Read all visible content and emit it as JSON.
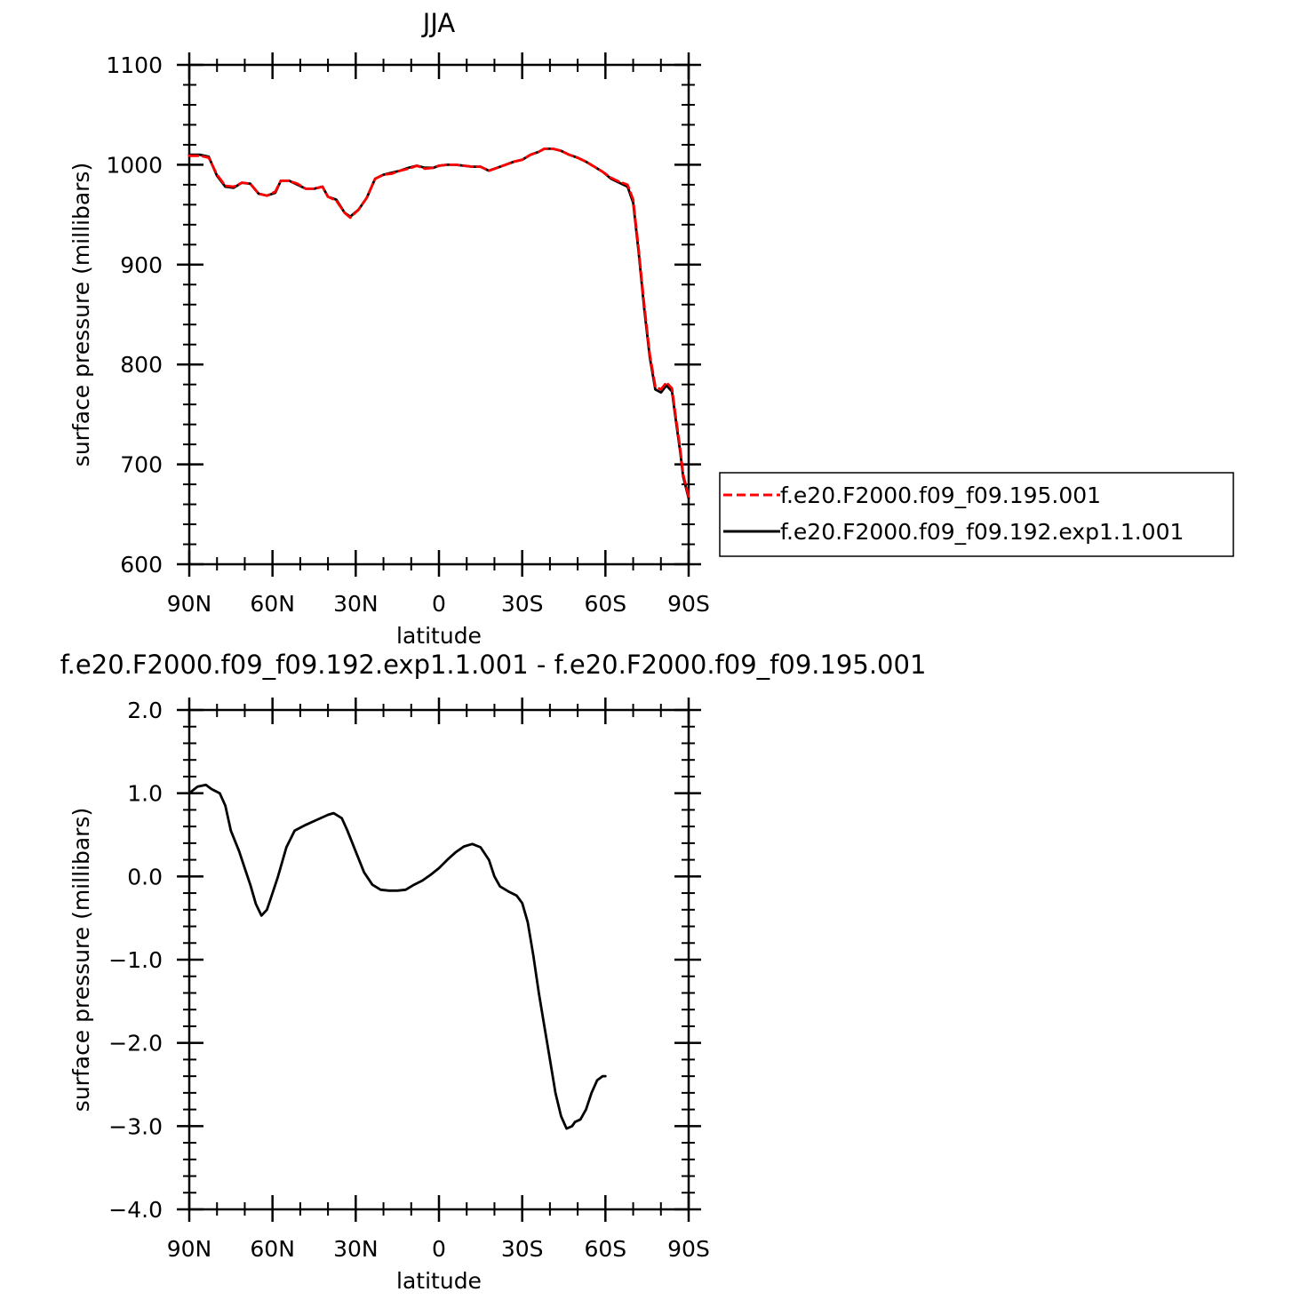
{
  "chart_data": [
    {
      "type": "line",
      "title": "JJA",
      "xlabel": "latitude",
      "ylabel": "surface pressure (millibars)",
      "xlim": [
        90,
        -90
      ],
      "ylim": [
        600,
        1100
      ],
      "x_ticks": [
        90,
        60,
        30,
        0,
        -30,
        -60,
        -90
      ],
      "x_tick_labels": [
        "90N",
        "60N",
        "30N",
        "0",
        "30S",
        "60S",
        "90S"
      ],
      "y_ticks": [
        600,
        700,
        800,
        900,
        1000,
        1100
      ],
      "y_tick_labels": [
        "600",
        "700",
        "800",
        "900",
        "1000",
        "1100"
      ],
      "legend_position": "right",
      "series": [
        {
          "name": "f.e20.F2000.f09_f09.195.001",
          "color": "#ff0000",
          "style": "dashed",
          "points": [
            [
              90,
              1009
            ],
            [
              86,
              1009
            ],
            [
              83,
              1007
            ],
            [
              80,
              990
            ],
            [
              77,
              979
            ],
            [
              74,
              978
            ],
            [
              71,
              982
            ],
            [
              68,
              981
            ],
            [
              65,
              971
            ],
            [
              62,
              969
            ],
            [
              59,
              973
            ],
            [
              57,
              984
            ],
            [
              54,
              984
            ],
            [
              51,
              981
            ],
            [
              48,
              976
            ],
            [
              45,
              976
            ],
            [
              42,
              978
            ],
            [
              40,
              968
            ],
            [
              37,
              964
            ],
            [
              34,
              952
            ],
            [
              32,
              947
            ],
            [
              29,
              955
            ],
            [
              26,
              967
            ],
            [
              23,
              986
            ],
            [
              20,
              990
            ],
            [
              17,
              991
            ],
            [
              14,
              994
            ],
            [
              11,
              996
            ],
            [
              8,
              999
            ],
            [
              5,
              996
            ],
            [
              2,
              997
            ],
            [
              0,
              999
            ],
            [
              -3,
              1000
            ],
            [
              -6,
              1000
            ],
            [
              -9,
              999
            ],
            [
              -12,
              998
            ],
            [
              -15,
              998
            ],
            [
              -18,
              994
            ],
            [
              -21,
              997
            ],
            [
              -24,
              1000
            ],
            [
              -27,
              1003
            ],
            [
              -30,
              1005
            ],
            [
              -33,
              1010
            ],
            [
              -36,
              1013
            ],
            [
              -38,
              1016
            ],
            [
              -41,
              1016
            ],
            [
              -44,
              1014
            ],
            [
              -47,
              1010
            ],
            [
              -50,
              1007
            ],
            [
              -53,
              1003
            ],
            [
              -56,
              998
            ],
            [
              -59,
              993
            ],
            [
              -62,
              987
            ],
            [
              -65,
              983
            ],
            [
              -68,
              980
            ],
            [
              -70,
              965
            ],
            [
              -72,
              915
            ],
            [
              -74,
              860
            ],
            [
              -76,
              810
            ],
            [
              -78,
              778
            ],
            [
              -80,
              775
            ],
            [
              -82,
              782
            ],
            [
              -84,
              776
            ],
            [
              -85,
              755
            ],
            [
              -87,
              715
            ],
            [
              -88,
              690
            ],
            [
              -90,
              668
            ]
          ]
        },
        {
          "name": "f.e20.F2000.f09_f09.192.exp1.1.001",
          "color": "#000000",
          "style": "solid",
          "points": [
            [
              90,
              1010
            ],
            [
              86,
              1010
            ],
            [
              83,
              1008
            ],
            [
              80,
              989
            ],
            [
              77,
              978
            ],
            [
              74,
              977
            ],
            [
              71,
              982
            ],
            [
              68,
              981
            ],
            [
              65,
              971
            ],
            [
              62,
              969
            ],
            [
              59,
              972
            ],
            [
              57,
              984
            ],
            [
              54,
              984
            ],
            [
              51,
              980
            ],
            [
              48,
              976
            ],
            [
              45,
              976
            ],
            [
              42,
              978
            ],
            [
              40,
              968
            ],
            [
              37,
              965
            ],
            [
              34,
              952
            ],
            [
              32,
              948
            ],
            [
              29,
              955
            ],
            [
              26,
              967
            ],
            [
              23,
              986
            ],
            [
              20,
              990
            ],
            [
              17,
              992
            ],
            [
              14,
              994
            ],
            [
              11,
              997
            ],
            [
              8,
              999
            ],
            [
              5,
              997
            ],
            [
              2,
              997
            ],
            [
              0,
              999
            ],
            [
              -3,
              1000
            ],
            [
              -6,
              1000
            ],
            [
              -9,
              999
            ],
            [
              -12,
              998
            ],
            [
              -15,
              998
            ],
            [
              -18,
              994
            ],
            [
              -21,
              997
            ],
            [
              -24,
              1000
            ],
            [
              -27,
              1003
            ],
            [
              -30,
              1005
            ],
            [
              -33,
              1010
            ],
            [
              -36,
              1013
            ],
            [
              -38,
              1016
            ],
            [
              -41,
              1016
            ],
            [
              -44,
              1014
            ],
            [
              -47,
              1010
            ],
            [
              -50,
              1007
            ],
            [
              -53,
              1003
            ],
            [
              -56,
              998
            ],
            [
              -59,
              993
            ],
            [
              -62,
              986
            ],
            [
              -65,
              982
            ],
            [
              -68,
              978
            ],
            [
              -70,
              962
            ],
            [
              -72,
              912
            ],
            [
              -74,
              856
            ],
            [
              -76,
              807
            ],
            [
              -78,
              775
            ],
            [
              -80,
              772
            ],
            [
              -82,
              779
            ],
            [
              -84,
              773
            ],
            [
              -85,
              752
            ],
            [
              -87,
              712
            ],
            [
              -88,
              688
            ],
            [
              -90,
              666
            ]
          ]
        }
      ]
    },
    {
      "type": "line",
      "title": "f.e20.F2000.f09_f09.192.exp1.1.001 - f.e20.F2000.f09_f09.195.001",
      "xlabel": "latitude",
      "ylabel": "surface pressure (millibars)",
      "xlim": [
        90,
        -90
      ],
      "ylim": [
        -4.0,
        2.0
      ],
      "x_ticks": [
        90,
        60,
        30,
        0,
        -30,
        -60,
        -90
      ],
      "x_tick_labels": [
        "90N",
        "60N",
        "30N",
        "0",
        "30S",
        "60S",
        "90S"
      ],
      "y_ticks": [
        -4,
        -3,
        -2,
        -1,
        0,
        1,
        2
      ],
      "y_tick_labels": [
        "-4.0",
        "-3.0",
        "-2.0",
        "-1.0",
        "0.0",
        "1.0",
        "2.0"
      ],
      "series": [
        {
          "color": "#000000",
          "style": "solid",
          "points": [
            [
              90,
              1.0
            ],
            [
              87,
              1.08
            ],
            [
              84,
              1.1
            ],
            [
              82,
              1.05
            ],
            [
              79,
              1.0
            ],
            [
              77,
              0.85
            ],
            [
              75,
              0.55
            ],
            [
              72,
              0.3
            ],
            [
              70,
              0.1
            ],
            [
              68,
              -0.1
            ],
            [
              66,
              -0.33
            ],
            [
              64,
              -0.47
            ],
            [
              62,
              -0.4
            ],
            [
              60,
              -0.2
            ],
            [
              58,
              0.0
            ],
            [
              55,
              0.35
            ],
            [
              52,
              0.55
            ],
            [
              48,
              0.62
            ],
            [
              44,
              0.68
            ],
            [
              40,
              0.74
            ],
            [
              38,
              0.76
            ],
            [
              35,
              0.7
            ],
            [
              33,
              0.55
            ],
            [
              30,
              0.3
            ],
            [
              27,
              0.05
            ],
            [
              24,
              -0.1
            ],
            [
              21,
              -0.16
            ],
            [
              18,
              -0.17
            ],
            [
              15,
              -0.17
            ],
            [
              12,
              -0.16
            ],
            [
              9,
              -0.1
            ],
            [
              6,
              -0.05
            ],
            [
              3,
              0.02
            ],
            [
              0,
              0.1
            ],
            [
              -3,
              0.2
            ],
            [
              -6,
              0.29
            ],
            [
              -9,
              0.36
            ],
            [
              -12,
              0.39
            ],
            [
              -15,
              0.35
            ],
            [
              -18,
              0.2
            ],
            [
              -20,
              0.0
            ],
            [
              -22,
              -0.12
            ],
            [
              -25,
              -0.18
            ],
            [
              -28,
              -0.23
            ],
            [
              -30,
              -0.32
            ],
            [
              -32,
              -0.55
            ],
            [
              -34,
              -0.95
            ],
            [
              -36,
              -1.4
            ],
            [
              -38,
              -1.8
            ],
            [
              -40,
              -2.2
            ],
            [
              -42,
              -2.6
            ],
            [
              -44,
              -2.88
            ],
            [
              -46,
              -3.03
            ],
            [
              -48,
              -3.0
            ],
            [
              -49,
              -2.95
            ],
            [
              -51,
              -2.92
            ],
            [
              -53,
              -2.8
            ],
            [
              -55,
              -2.6
            ],
            [
              -57,
              -2.45
            ],
            [
              -59,
              -2.4
            ],
            [
              -60,
              -2.4
            ]
          ]
        }
      ]
    }
  ]
}
